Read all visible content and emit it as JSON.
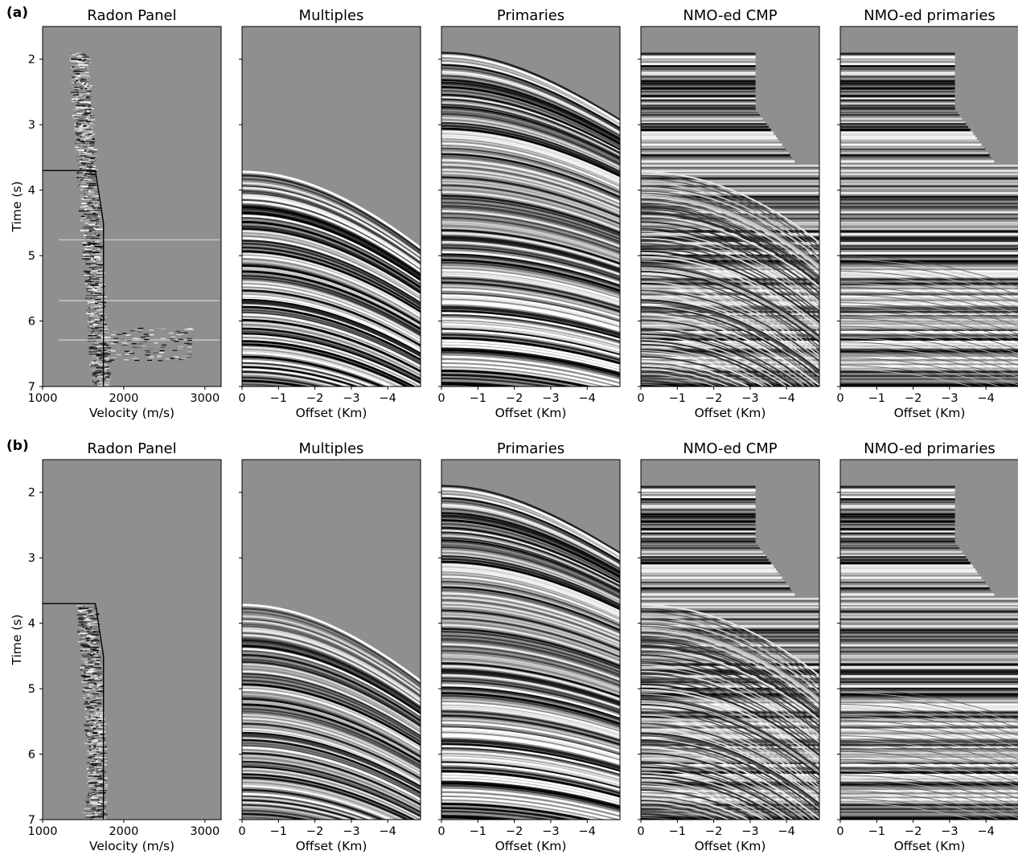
{
  "figure": {
    "rows": [
      {
        "label": "(a)",
        "panels": [
          {
            "title": "Radon Panel",
            "xlabel": "Velocity (m/s)",
            "ylabel": "Time (s)",
            "kind": "radon",
            "radon_extent": "full",
            "xlim": [
              1000,
              3200
            ],
            "xticks": [
              1000,
              2000,
              3000
            ],
            "xtick_labels": [
              "1000",
              "2000",
              "3000"
            ],
            "mute_line": {
              "v": [
                1000,
                1650,
                1750,
                1750
              ],
              "t": [
                3.7,
                3.7,
                4.5,
                7.0
              ]
            }
          },
          {
            "title": "Multiples",
            "xlabel": "Offset (Km)",
            "kind": "multiples",
            "xlim": [
              0,
              -4.9
            ],
            "xticks": [
              0,
              -1,
              -2,
              -3,
              -4
            ],
            "xtick_labels": [
              "0",
              "−1",
              "−2",
              "−3",
              "−4"
            ]
          },
          {
            "title": "Primaries",
            "xlabel": "Offset (Km)",
            "kind": "primaries",
            "xlim": [
              0,
              -4.9
            ],
            "xticks": [
              0,
              -1,
              -2,
              -3,
              -4
            ],
            "xtick_labels": [
              "0",
              "−1",
              "−2",
              "−3",
              "−4"
            ]
          },
          {
            "title": "NMO-ed CMP",
            "xlabel": "Offset (Km)",
            "kind": "nmo_cmp",
            "xlim": [
              0,
              -4.9
            ],
            "xticks": [
              0,
              -1,
              -2,
              -3,
              -4
            ],
            "xtick_labels": [
              "0",
              "−1",
              "−2",
              "−3",
              "−4"
            ]
          },
          {
            "title": "NMO-ed primaries",
            "xlabel": "Offset (Km)",
            "kind": "nmo_primaries",
            "xlim": [
              0,
              -4.9
            ],
            "xticks": [
              0,
              -1,
              -2,
              -3,
              -4
            ],
            "xtick_labels": [
              "0",
              "−1",
              "−2",
              "−3",
              "−4"
            ]
          }
        ]
      },
      {
        "label": "(b)",
        "panels": [
          {
            "title": "Radon Panel",
            "xlabel": "Velocity (m/s)",
            "ylabel": "Time (s)",
            "kind": "radon",
            "radon_extent": "muted",
            "xlim": [
              1000,
              3200
            ],
            "xticks": [
              1000,
              2000,
              3000
            ],
            "xtick_labels": [
              "1000",
              "2000",
              "3000"
            ],
            "mute_line": {
              "v": [
                1000,
                1650,
                1750,
                1750
              ],
              "t": [
                3.7,
                3.7,
                4.5,
                7.0
              ]
            }
          },
          {
            "title": "Multiples",
            "xlabel": "Offset (Km)",
            "kind": "multiples",
            "xlim": [
              0,
              -4.9
            ],
            "xticks": [
              0,
              -1,
              -2,
              -3,
              -4
            ],
            "xtick_labels": [
              "0",
              "−1",
              "−2",
              "−3",
              "−4"
            ]
          },
          {
            "title": "Primaries",
            "xlabel": "Offset (Km)",
            "kind": "primaries",
            "xlim": [
              0,
              -4.9
            ],
            "xticks": [
              0,
              -1,
              -2,
              -3,
              -4
            ],
            "xtick_labels": [
              "0",
              "−1",
              "−2",
              "−3",
              "−4"
            ]
          },
          {
            "title": "NMO-ed CMP",
            "xlabel": "Offset (Km)",
            "kind": "nmo_cmp",
            "xlim": [
              0,
              -4.9
            ],
            "xticks": [
              0,
              -1,
              -2,
              -3,
              -4
            ],
            "xtick_labels": [
              "0",
              "−1",
              "−2",
              "−3",
              "−4"
            ]
          },
          {
            "title": "NMO-ed primaries",
            "xlabel": "Offset (Km)",
            "kind": "nmo_primaries",
            "xlim": [
              0,
              -4.9
            ],
            "xticks": [
              0,
              -1,
              -2,
              -3,
              -4
            ],
            "xtick_labels": [
              "0",
              "−1",
              "−2",
              "−3",
              "−4"
            ]
          }
        ]
      }
    ]
  },
  "chart_data": {
    "type": "heatmap",
    "colormap": "grayscale seismic wiggle density",
    "background_color": "#8f8f8f",
    "ylim": [
      7.0,
      1.5
    ],
    "yticks": [
      2,
      3,
      4,
      5,
      6,
      7
    ],
    "ytick_labels": [
      "2",
      "3",
      "4",
      "5",
      "6",
      "7"
    ],
    "ylabel": "Time (s)",
    "first_primary_time_s": 1.9,
    "first_multiple_time_s": 3.7,
    "nmo_mute_boundary": {
      "offset_km": [
        -3.15,
        -3.15,
        -4.3,
        -4.9
      ],
      "time_s": [
        1.9,
        2.75,
        3.6,
        3.6
      ]
    },
    "panels": [
      "Radon Panel",
      "Multiples",
      "Primaries",
      "NMO-ed CMP",
      "NMO-ed primaries"
    ],
    "rows": [
      "(a)",
      "(b)"
    ]
  }
}
